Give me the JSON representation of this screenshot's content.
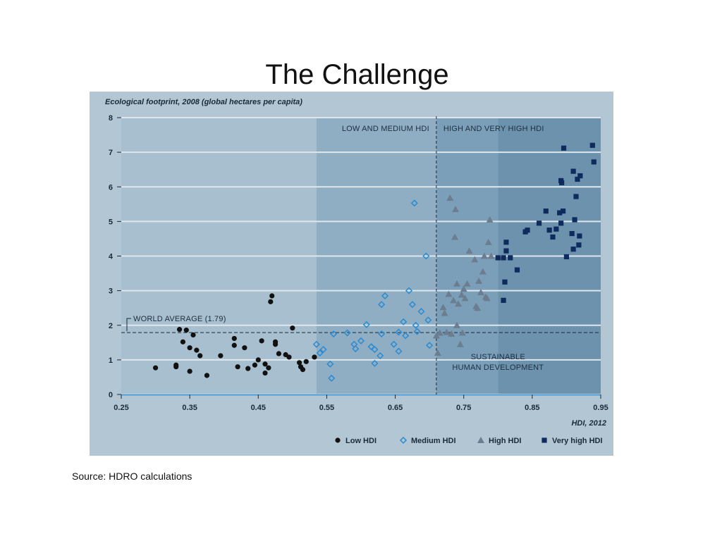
{
  "slide": {
    "title": "The Challenge",
    "source": "Source: HDRO calculations"
  },
  "chart_data": {
    "type": "scatter",
    "ylabel": "Ecological footprint, 2008 (global hectares per capita)",
    "xlabel": "HDI, 2012",
    "xlim": [
      0.25,
      0.95
    ],
    "ylim": [
      0,
      8
    ],
    "x_ticks": [
      "0.25",
      "0.35",
      "0.45",
      "0.55",
      "0.65",
      "0.75",
      "0.85",
      "0.95"
    ],
    "y_ticks": [
      "0",
      "1",
      "2",
      "3",
      "4",
      "5",
      "6",
      "7",
      "8"
    ],
    "grid": "horizontal",
    "legend_position": "bottom-right",
    "regions": {
      "low_medium_label": "LOW AND MEDIUM HDI",
      "high_very_high_label": "HIGH AND VERY HIGH HDI",
      "sustainable_label_line1": "SUSTAINABLE",
      "sustainable_label_line2": "HUMAN DEVELOPMENT",
      "threshold_hdi": 0.71
    },
    "world_average": {
      "label": "WORLD AVERAGE (1.79)",
      "value": 1.79
    },
    "colors": {
      "Low HDI": "#111111",
      "Medium HDI": "#2a8bd0",
      "High HDI": "#6b7d8e",
      "Very high HDI": "#0f2a5c"
    },
    "series": [
      {
        "name": "Low HDI",
        "marker": "circle",
        "points": [
          [
            0.3,
            0.77
          ],
          [
            0.33,
            0.8
          ],
          [
            0.33,
            0.85
          ],
          [
            0.335,
            1.88
          ],
          [
            0.34,
            1.52
          ],
          [
            0.345,
            1.86
          ],
          [
            0.35,
            0.67
          ],
          [
            0.35,
            1.35
          ],
          [
            0.355,
            1.72
          ],
          [
            0.36,
            1.28
          ],
          [
            0.365,
            1.12
          ],
          [
            0.375,
            0.55
          ],
          [
            0.395,
            1.12
          ],
          [
            0.415,
            1.42
          ],
          [
            0.415,
            1.62
          ],
          [
            0.42,
            0.8
          ],
          [
            0.43,
            1.35
          ],
          [
            0.435,
            0.75
          ],
          [
            0.445,
            0.85
          ],
          [
            0.45,
            1.0
          ],
          [
            0.455,
            1.55
          ],
          [
            0.46,
            0.62
          ],
          [
            0.46,
            0.88
          ],
          [
            0.465,
            0.77
          ],
          [
            0.468,
            2.68
          ],
          [
            0.47,
            2.85
          ],
          [
            0.475,
            1.45
          ],
          [
            0.475,
            1.52
          ],
          [
            0.48,
            1.18
          ],
          [
            0.49,
            1.15
          ],
          [
            0.495,
            1.08
          ],
          [
            0.5,
            1.92
          ],
          [
            0.51,
            0.92
          ],
          [
            0.512,
            0.8
          ],
          [
            0.515,
            0.72
          ],
          [
            0.52,
            0.95
          ],
          [
            0.532,
            1.08
          ]
        ]
      },
      {
        "name": "Medium HDI",
        "marker": "diamond",
        "points": [
          [
            0.535,
            1.45
          ],
          [
            0.54,
            1.2
          ],
          [
            0.545,
            1.3
          ],
          [
            0.555,
            0.88
          ],
          [
            0.557,
            0.47
          ],
          [
            0.56,
            1.75
          ],
          [
            0.58,
            1.78
          ],
          [
            0.59,
            1.45
          ],
          [
            0.592,
            1.32
          ],
          [
            0.6,
            1.55
          ],
          [
            0.608,
            2.02
          ],
          [
            0.615,
            1.38
          ],
          [
            0.62,
            0.9
          ],
          [
            0.62,
            1.3
          ],
          [
            0.628,
            1.12
          ],
          [
            0.63,
            1.75
          ],
          [
            0.63,
            2.6
          ],
          [
            0.635,
            2.85
          ],
          [
            0.648,
            1.45
          ],
          [
            0.655,
            1.8
          ],
          [
            0.655,
            1.25
          ],
          [
            0.662,
            2.1
          ],
          [
            0.665,
            1.7
          ],
          [
            0.67,
            3.0
          ],
          [
            0.675,
            2.6
          ],
          [
            0.678,
            5.53
          ],
          [
            0.68,
            2.0
          ],
          [
            0.682,
            1.82
          ],
          [
            0.688,
            2.4
          ],
          [
            0.695,
            4.0
          ],
          [
            0.698,
            2.15
          ],
          [
            0.7,
            1.42
          ]
        ]
      },
      {
        "name": "High HDI",
        "marker": "triangle",
        "points": [
          [
            0.71,
            1.7
          ],
          [
            0.712,
            1.2
          ],
          [
            0.715,
            1.78
          ],
          [
            0.72,
            2.52
          ],
          [
            0.722,
            2.35
          ],
          [
            0.725,
            1.8
          ],
          [
            0.728,
            2.9
          ],
          [
            0.73,
            5.68
          ],
          [
            0.732,
            1.75
          ],
          [
            0.735,
            2.72
          ],
          [
            0.737,
            4.55
          ],
          [
            0.738,
            5.35
          ],
          [
            0.74,
            2.0
          ],
          [
            0.74,
            3.2
          ],
          [
            0.742,
            2.62
          ],
          [
            0.745,
            1.45
          ],
          [
            0.747,
            2.88
          ],
          [
            0.748,
            1.78
          ],
          [
            0.75,
            3.05
          ],
          [
            0.752,
            2.78
          ],
          [
            0.755,
            3.2
          ],
          [
            0.758,
            4.15
          ],
          [
            0.766,
            3.9
          ],
          [
            0.768,
            2.55
          ],
          [
            0.77,
            2.5
          ],
          [
            0.772,
            3.28
          ],
          [
            0.775,
            2.95
          ],
          [
            0.778,
            3.55
          ],
          [
            0.78,
            4.0
          ],
          [
            0.782,
            2.82
          ],
          [
            0.784,
            2.78
          ],
          [
            0.786,
            4.4
          ],
          [
            0.788,
            5.05
          ],
          [
            0.79,
            4.0
          ]
        ]
      },
      {
        "name": "Very high HDI",
        "marker": "square",
        "points": [
          [
            0.8,
            3.95
          ],
          [
            0.808,
            3.95
          ],
          [
            0.808,
            2.72
          ],
          [
            0.81,
            3.25
          ],
          [
            0.812,
            4.4
          ],
          [
            0.812,
            4.15
          ],
          [
            0.818,
            3.95
          ],
          [
            0.828,
            3.6
          ],
          [
            0.84,
            4.7
          ],
          [
            0.843,
            4.75
          ],
          [
            0.86,
            4.95
          ],
          [
            0.87,
            5.3
          ],
          [
            0.875,
            4.75
          ],
          [
            0.88,
            4.55
          ],
          [
            0.885,
            4.78
          ],
          [
            0.89,
            5.25
          ],
          [
            0.892,
            4.95
          ],
          [
            0.892,
            6.18
          ],
          [
            0.893,
            6.12
          ],
          [
            0.895,
            5.3
          ],
          [
            0.896,
            7.12
          ],
          [
            0.9,
            3.98
          ],
          [
            0.908,
            4.65
          ],
          [
            0.91,
            4.2
          ],
          [
            0.91,
            6.45
          ],
          [
            0.912,
            5.05
          ],
          [
            0.914,
            5.72
          ],
          [
            0.916,
            6.22
          ],
          [
            0.918,
            4.32
          ],
          [
            0.919,
            4.58
          ],
          [
            0.92,
            6.32
          ],
          [
            0.938,
            7.2
          ],
          [
            0.94,
            6.72
          ]
        ]
      }
    ]
  }
}
